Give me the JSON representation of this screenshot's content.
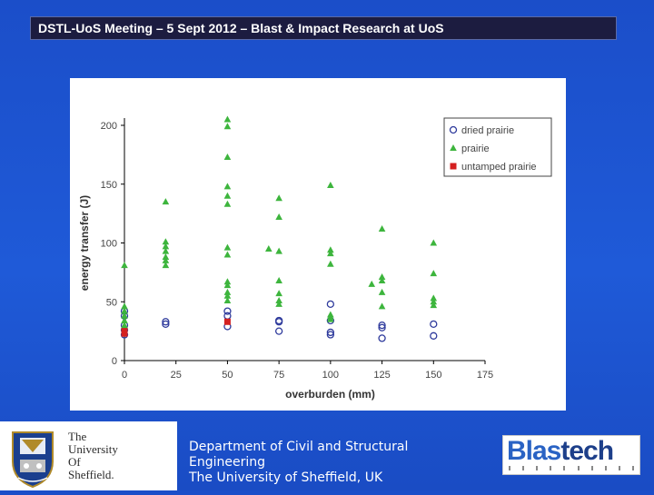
{
  "header": {
    "title": "DSTL-UoS Meeting – 5 Sept 2012 – Blast & Impact Research at UoS"
  },
  "footer": {
    "department_line1": "Department of Civil and Structural",
    "department_line2": "Engineering",
    "department_line3": "The University of Sheffield, UK",
    "university_logo_text": [
      "The",
      "University",
      "Of",
      "Sheffield."
    ],
    "partner_logo_text_a": "Blas",
    "partner_logo_text_b": "tech"
  },
  "colors": {
    "background": "#1f55d2",
    "header_bar": "#1c1c40",
    "dried_prairie": "#2e3a9c",
    "prairie": "#3db53d",
    "untamped_prairie": "#d42020"
  },
  "chart_data": {
    "type": "scatter",
    "title": "",
    "xlabel": "overburden (mm)",
    "ylabel": "energy transfer (J)",
    "xlim": [
      0,
      175
    ],
    "ylim": [
      0,
      200
    ],
    "xticks": [
      0,
      25,
      50,
      75,
      100,
      125,
      150,
      175
    ],
    "yticks": [
      0,
      50,
      100,
      150,
      200
    ],
    "grid": false,
    "legend_position": "top-right",
    "series": [
      {
        "name": "dried prairie",
        "marker": "open-circle",
        "points": [
          [
            0,
            42
          ],
          [
            0,
            38
          ],
          [
            0,
            30
          ],
          [
            0,
            26
          ],
          [
            0,
            22
          ],
          [
            20,
            33
          ],
          [
            20,
            31
          ],
          [
            50,
            42
          ],
          [
            50,
            38
          ],
          [
            50,
            29
          ],
          [
            75,
            34
          ],
          [
            75,
            33
          ],
          [
            75,
            25
          ],
          [
            100,
            48
          ],
          [
            100,
            34
          ],
          [
            100,
            24
          ],
          [
            100,
            22
          ],
          [
            125,
            30
          ],
          [
            125,
            28
          ],
          [
            125,
            19
          ],
          [
            150,
            31
          ],
          [
            150,
            21
          ]
        ]
      },
      {
        "name": "prairie",
        "marker": "filled-triangle",
        "points": [
          [
            0,
            81
          ],
          [
            0,
            46
          ],
          [
            0,
            42
          ],
          [
            0,
            38
          ],
          [
            0,
            34
          ],
          [
            0,
            30
          ],
          [
            0,
            27
          ],
          [
            20,
            135
          ],
          [
            20,
            101
          ],
          [
            20,
            97
          ],
          [
            20,
            93
          ],
          [
            20,
            88
          ],
          [
            20,
            85
          ],
          [
            20,
            81
          ],
          [
            50,
            205
          ],
          [
            50,
            199
          ],
          [
            50,
            173
          ],
          [
            50,
            148
          ],
          [
            50,
            140
          ],
          [
            50,
            133
          ],
          [
            50,
            96
          ],
          [
            50,
            90
          ],
          [
            50,
            67
          ],
          [
            50,
            64
          ],
          [
            50,
            58
          ],
          [
            50,
            55
          ],
          [
            50,
            51
          ],
          [
            70,
            95
          ],
          [
            75,
            138
          ],
          [
            75,
            122
          ],
          [
            75,
            93
          ],
          [
            75,
            68
          ],
          [
            75,
            57
          ],
          [
            75,
            51
          ],
          [
            75,
            48
          ],
          [
            100,
            149
          ],
          [
            100,
            94
          ],
          [
            100,
            91
          ],
          [
            100,
            82
          ],
          [
            100,
            39
          ],
          [
            100,
            37
          ],
          [
            100,
            35
          ],
          [
            120,
            65
          ],
          [
            125,
            112
          ],
          [
            125,
            71
          ],
          [
            125,
            68
          ],
          [
            125,
            58
          ],
          [
            125,
            46
          ],
          [
            150,
            100
          ],
          [
            150,
            74
          ],
          [
            150,
            53
          ],
          [
            150,
            50
          ],
          [
            150,
            47
          ]
        ]
      },
      {
        "name": "untamped prairie",
        "marker": "filled-square",
        "points": [
          [
            0,
            25
          ],
          [
            0,
            23
          ],
          [
            50,
            33
          ]
        ]
      }
    ]
  }
}
